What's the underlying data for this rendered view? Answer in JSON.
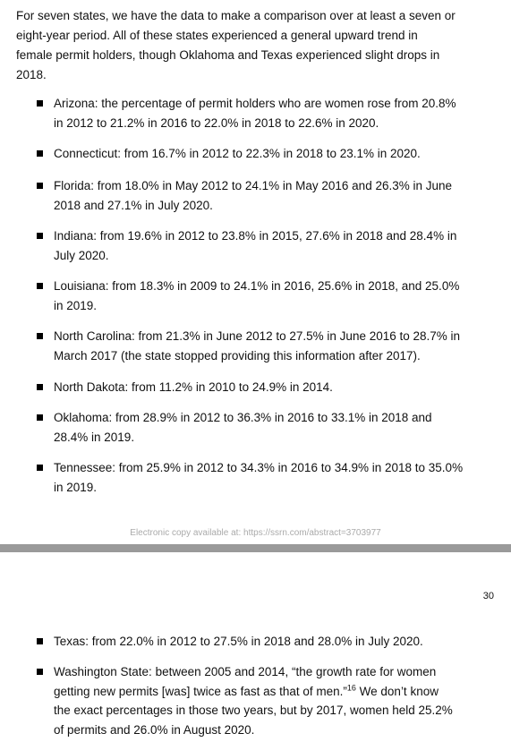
{
  "page_1": {
    "intro": [
      "For seven states, we have the data to make a comparison over at least a seven or",
      "eight-year period.  All of these states experienced a general upward trend in",
      "female permit holders, though Oklahoma and Texas experienced slight drops in",
      "2018."
    ],
    "bullets": [
      [
        "Arizona: the percentage of permit holders who are women rose from 20.8%",
        "in 2012 to 21.2% in 2016 to 22.0% in 2018 to 22.6% in 2020."
      ],
      [
        "Connecticut: from 16.7% in 2012 to 22.3% in 2018 to 23.1% in 2020."
      ],
      [
        "Florida: from 18.0% in May 2012 to 24.1% in May 2016 and 26.3% in June",
        "2018 and 27.1% in July 2020."
      ],
      [
        "Indiana: from 19.6% in 2012 to 23.8% in 2015, 27.6% in 2018 and 28.4% in",
        "July 2020."
      ],
      [
        "Louisiana: from 18.3% in 2009 to 24.1% in 2016, 25.6% in 2018, and 25.0%",
        "in 2019."
      ],
      [
        "North Carolina: from 21.3% in June 2012 to 27.5% in June 2016 to 28.7% in",
        "March 2017 (the state stopped providing this information after 2017)."
      ],
      [
        "North Dakota: from 11.2% in 2010 to 24.9% in 2014."
      ],
      [
        "Oklahoma: from 28.9% in 2012 to 36.3% in 2016 to 33.1% in 2018 and",
        "28.4% in 2019."
      ],
      [
        "Tennessee:  from 25.9% in 2012 to 34.3% in 2016 to 34.9% in 2018 to 35.0%",
        "in 2019."
      ]
    ],
    "footer": "Electronic copy available at: https://ssrn.com/abstract=3703977"
  },
  "page_2": {
    "page_number": "30",
    "bullets": [
      [
        "Texas: from 22.0% in 2012 to 27.5% in 2018 and 28.0% in July 2020."
      ],
      [
        "Washington State: between 2005 and 2014, “the growth rate for women",
        {
          "text": "getting new permits [was] twice as fast as that of men.”",
          "footnote": "16",
          "rest": " We don’t know"
        },
        "the exact percentages in those two years, but by 2017, women held 25.2%",
        "of permits and 26.0% in August 2020."
      ]
    ]
  }
}
